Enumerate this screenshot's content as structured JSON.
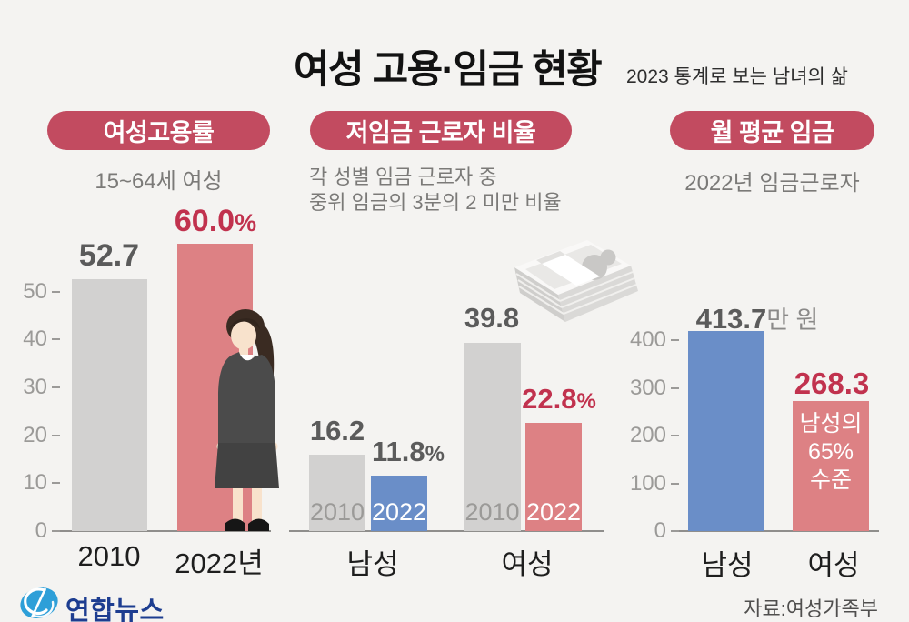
{
  "header": {
    "title": "여성 고용·임금 현황",
    "subtitle": "2023 통계로 보는 남녀의 삶"
  },
  "footer": {
    "logo_text": "연합뉴스",
    "source": "자료:여성가족부"
  },
  "colors": {
    "background": "#F4F3F1",
    "badge": "#C24B60",
    "bar_gray": "#D2D1D0",
    "bar_rose": "#DD8184",
    "bar_blue": "#6A8EC8",
    "accent_red_text": "#C1324E",
    "value_gray_text": "#5B5B5B",
    "axis_gray": "#8F8E8C",
    "yonhap_navy": "#1D3D90",
    "yonhap_blue": "#2E9FD8"
  },
  "icons": {
    "woman": "woman-in-suit-illustration",
    "money": "banknote-stack-icon",
    "logo": "yonhap-swirl-icon"
  },
  "chart_data": [
    {
      "type": "bar",
      "badge": "여성고용률",
      "subtitle": "15~64세 여성",
      "unit": "%",
      "ylim": [
        0,
        60
      ],
      "yticks": [
        "0",
        "10",
        "20",
        "30",
        "40",
        "50"
      ],
      "grid": false,
      "bars": [
        {
          "category": "2010",
          "value": 52.7,
          "label": "52.7",
          "label_suffix": "",
          "color": "gray"
        },
        {
          "category": "2022년",
          "value": 60.0,
          "label": "60.0",
          "label_suffix": "%",
          "color": "rose"
        }
      ]
    },
    {
      "type": "grouped-bar",
      "badge": "저임금 근로자 비율",
      "subtitle_lines": [
        "각 성별 임금 근로자 중",
        "중위 임금의 3분의 2 미만 비율"
      ],
      "unit": "%",
      "grid": false,
      "groups": [
        {
          "name": "남성",
          "bars": [
            {
              "year": "2010",
              "value": 16.2,
              "label": "16.2",
              "label_suffix": "",
              "color": "gray"
            },
            {
              "year": "2022",
              "value": 11.8,
              "label": "11.8",
              "label_suffix": "%",
              "color": "blue"
            }
          ]
        },
        {
          "name": "여성",
          "bars": [
            {
              "year": "2010",
              "value": 39.8,
              "label": "39.8",
              "label_suffix": "",
              "color": "gray"
            },
            {
              "year": "2022",
              "value": 22.8,
              "label": "22.8",
              "label_suffix": "%",
              "color": "rose"
            }
          ]
        }
      ]
    },
    {
      "type": "bar",
      "badge": "월 평균 임금",
      "subtitle": "2022년 임금근로자",
      "unit": "만 원",
      "ylim": [
        0,
        440
      ],
      "yticks": [
        "0",
        "100",
        "200",
        "300",
        "400"
      ],
      "grid": false,
      "bars": [
        {
          "category": "남성",
          "value": 413.7,
          "label": "413.7",
          "label_suffix": "만 원",
          "color": "blue"
        },
        {
          "category": "여성",
          "value": 268.3,
          "label": "268.3",
          "label_suffix": "",
          "color": "rose",
          "annotation_lines": [
            "남성의",
            "65%",
            "수준"
          ]
        }
      ]
    }
  ]
}
